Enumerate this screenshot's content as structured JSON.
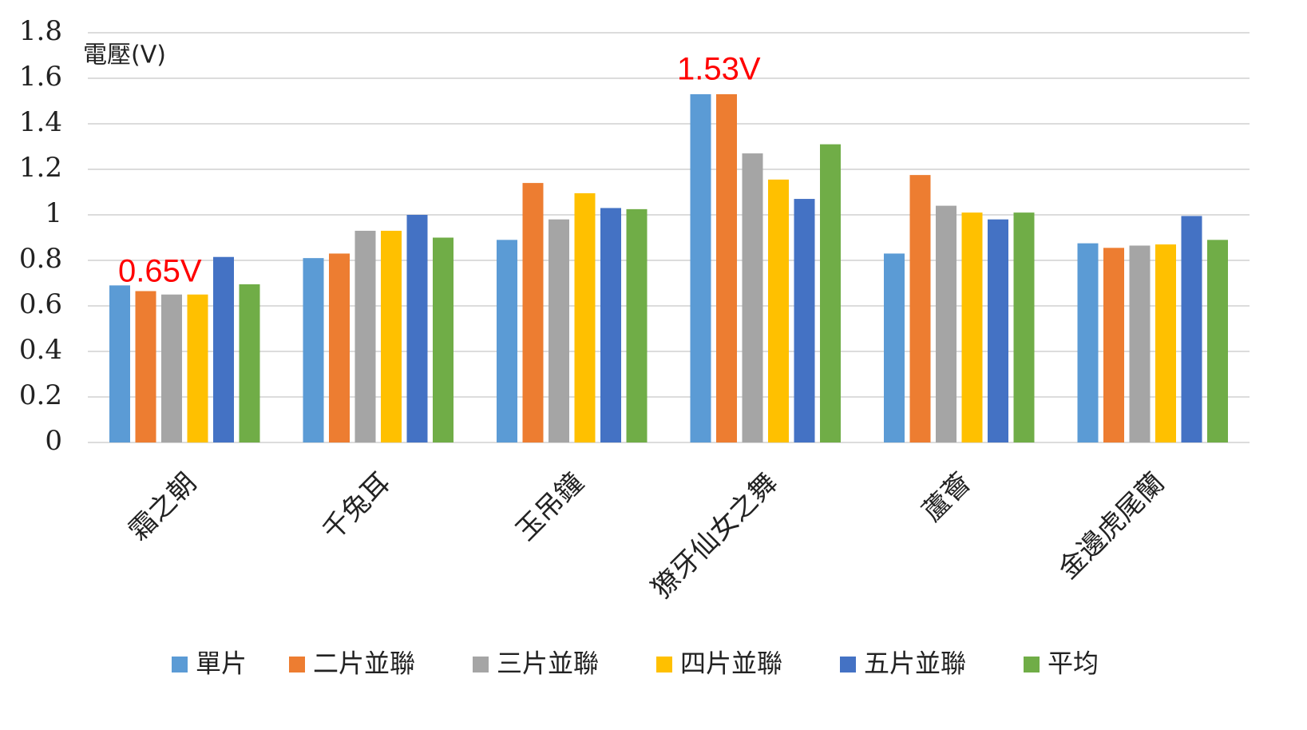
{
  "chart_data": {
    "type": "bar",
    "y_label": "電壓(V)",
    "categories": [
      "霜之朝",
      "千兔耳",
      "玉吊鐘",
      "獠牙仙女之舞",
      "蘆薈",
      "金邊虎尾蘭"
    ],
    "series": [
      {
        "name": "單片",
        "color": "#5b9bd5",
        "values": [
          0.69,
          0.81,
          0.89,
          1.53,
          0.83,
          0.875
        ]
      },
      {
        "name": "二片並聯",
        "color": "#ed7d31",
        "values": [
          0.665,
          0.83,
          1.14,
          1.53,
          1.175,
          0.855
        ]
      },
      {
        "name": "三片並聯",
        "color": "#a5a5a5",
        "values": [
          0.65,
          0.93,
          0.98,
          1.27,
          1.04,
          0.865
        ]
      },
      {
        "name": "四片並聯",
        "color": "#ffc000",
        "values": [
          0.65,
          0.93,
          1.095,
          1.155,
          1.01,
          0.87
        ]
      },
      {
        "name": "五片並聯",
        "color": "#4472c4",
        "values": [
          0.815,
          1.0,
          1.03,
          1.07,
          0.98,
          0.995
        ]
      },
      {
        "name": "平均",
        "color": "#70ad47",
        "values": [
          0.695,
          0.9,
          1.025,
          1.31,
          1.01,
          0.89
        ]
      }
    ],
    "annotations": [
      "0.65V",
      "1.53V"
    ],
    "ylim": [
      0,
      1.8
    ],
    "yticks": [
      0,
      0.2,
      0.4,
      0.6,
      0.8,
      1,
      1.2,
      1.4,
      1.6,
      1.8
    ],
    "grid": true,
    "legend": "bottom"
  }
}
